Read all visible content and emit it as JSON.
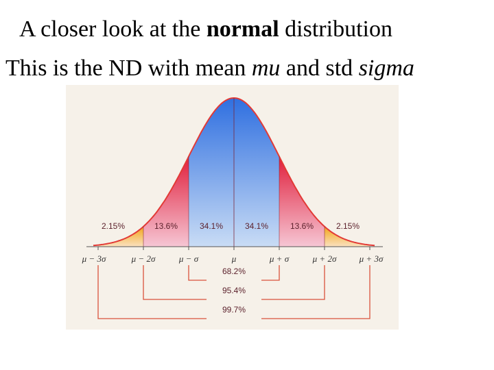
{
  "slide": {
    "title_pre": "A closer look at the ",
    "title_bold": "normal",
    "title_post": " distribution",
    "subtitle_pre": "This is the ND with mean ",
    "subtitle_mu": "mu",
    "subtitle_mid": " and std ",
    "subtitle_sigma": "sigma"
  },
  "chart_data": {
    "type": "area",
    "distribution": "normal",
    "x_ticks": [
      "μ − 3σ",
      "μ − 2σ",
      "μ − σ",
      "μ",
      "μ + σ",
      "μ + 2σ",
      "μ + 3σ"
    ],
    "bands": [
      {
        "from": -3,
        "to": -2,
        "label": "2.15%",
        "value": 2.15
      },
      {
        "from": -2,
        "to": -1,
        "label": "13.6%",
        "value": 13.6
      },
      {
        "from": -1,
        "to": 0,
        "label": "34.1%",
        "value": 34.1
      },
      {
        "from": 0,
        "to": 1,
        "label": "34.1%",
        "value": 34.1
      },
      {
        "from": 1,
        "to": 2,
        "label": "13.6%",
        "value": 13.6
      },
      {
        "from": 2,
        "to": 3,
        "label": "2.15%",
        "value": 2.15
      }
    ],
    "ranges": [
      {
        "from": -1,
        "to": 1,
        "label": "68.2%",
        "value": 68.2
      },
      {
        "from": -2,
        "to": 2,
        "label": "95.4%",
        "value": 95.4
      },
      {
        "from": -3,
        "to": 3,
        "label": "99.7%",
        "value": 99.7
      }
    ],
    "colors": {
      "panel_bg": "#f6f1e9",
      "center_band": "#2f6fe0",
      "center_band_light": "#c9dcf5",
      "mid_band": "#e01f3c",
      "mid_band_light": "#f6c6d4",
      "tail_band": "#f2a51a",
      "tail_band_light": "#fae1bf",
      "outline": "#e23a36",
      "bracket": "#d9523c"
    }
  }
}
